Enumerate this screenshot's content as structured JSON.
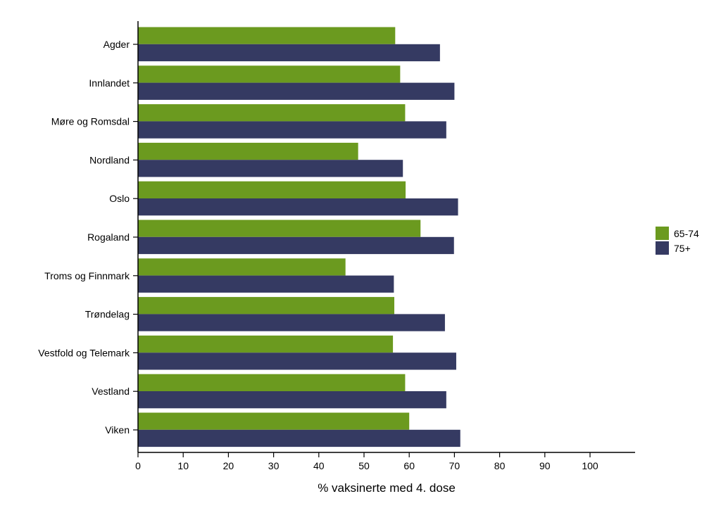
{
  "chart_data": {
    "type": "bar",
    "orientation": "horizontal",
    "categories": [
      "Agder",
      "Innlandet",
      "Møre og Romsdal",
      "Nordland",
      "Oslo",
      "Rogaland",
      "Troms og Finnmark",
      "Trøndelag",
      "Vestfold og Telemark",
      "Vestland",
      "Viken"
    ],
    "series": [
      {
        "name": "65-74",
        "color": "#6b9a1f",
        "values": [
          56.9,
          58.0,
          59.1,
          48.7,
          59.2,
          62.5,
          45.9,
          56.7,
          56.4,
          59.1,
          60.0
        ]
      },
      {
        "name": "75+",
        "color": "#353a62",
        "values": [
          66.8,
          70.0,
          68.2,
          58.6,
          70.8,
          69.9,
          56.6,
          67.9,
          70.4,
          68.2,
          71.3
        ]
      }
    ],
    "xlabel": "% vaksinerte med 4. dose",
    "ylabel": "",
    "xlim": [
      0,
      110
    ],
    "xticks": [
      0,
      10,
      20,
      30,
      40,
      50,
      60,
      70,
      80,
      90,
      100
    ],
    "grid": false,
    "legend_position": "right"
  }
}
